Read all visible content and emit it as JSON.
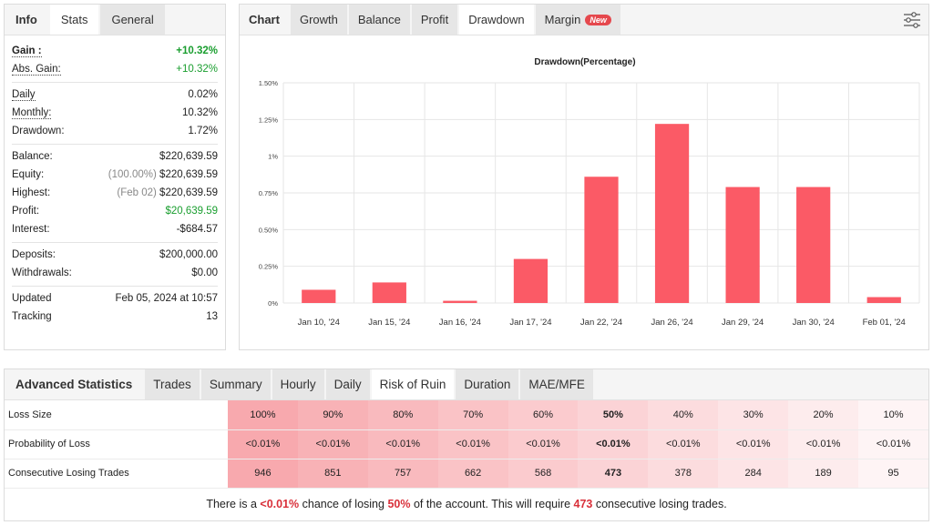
{
  "stats_panel": {
    "tabs": [
      {
        "label": "Info",
        "style": "plain"
      },
      {
        "label": "Stats",
        "style": "active"
      },
      {
        "label": "General",
        "style": "normal"
      }
    ],
    "groups": [
      [
        {
          "label": "Gain :",
          "value": "+10.32%",
          "label_style": "ul bold",
          "value_style": "green"
        },
        {
          "label": "Abs. Gain:",
          "value": "+10.32%",
          "label_style": "ul",
          "value_style": "greenplain"
        }
      ],
      [
        {
          "label": "Daily",
          "value": "0.02%",
          "label_style": "ul"
        },
        {
          "label": "Monthly:",
          "value": "10.32%",
          "label_style": "ul"
        },
        {
          "label": "Drawdown:",
          "value": "1.72%"
        }
      ],
      [
        {
          "label": "Balance:",
          "value": "$220,639.59"
        },
        {
          "label": "Equity:",
          "note": "(100.00%)",
          "value": "$220,639.59"
        },
        {
          "label": "Highest:",
          "note": "(Feb 02)",
          "value": "$220,639.59"
        },
        {
          "label": "Profit:",
          "value": "$20,639.59",
          "value_style": "greenplain"
        },
        {
          "label": "Interest:",
          "value": "-$684.57"
        }
      ],
      [
        {
          "label": "Deposits:",
          "value": "$200,000.00"
        },
        {
          "label": "Withdrawals:",
          "value": "$0.00"
        }
      ],
      [
        {
          "label": "Updated",
          "value": "Feb 05, 2024 at 10:57"
        },
        {
          "label": "Tracking",
          "value": "13"
        }
      ]
    ]
  },
  "chart_panel": {
    "tabs": [
      {
        "label": "Chart",
        "style": "plain"
      },
      {
        "label": "Growth",
        "style": "normal"
      },
      {
        "label": "Balance",
        "style": "normal"
      },
      {
        "label": "Profit",
        "style": "normal"
      },
      {
        "label": "Drawdown",
        "style": "active"
      },
      {
        "label": "Margin",
        "style": "normal",
        "badge": "New"
      }
    ],
    "settings_icon": "sliders-icon"
  },
  "chart_data": {
    "type": "bar",
    "title": "Drawdown(Percentage)",
    "categories": [
      "Jan 10, '24",
      "Jan 15, '24",
      "Jan 16, '24",
      "Jan 17, '24",
      "Jan 22, '24",
      "Jan 26, '24",
      "Jan 29, '24",
      "Jan 30, '24",
      "Feb 01, '24"
    ],
    "values": [
      0.09,
      0.14,
      0.015,
      0.3,
      0.86,
      1.22,
      0.79,
      0.79,
      0.04
    ],
    "ylim": [
      0,
      1.5
    ],
    "yticks": [
      {
        "value": 0,
        "label": "0%"
      },
      {
        "value": 0.25,
        "label": "0.25%"
      },
      {
        "value": 0.5,
        "label": "0.50%"
      },
      {
        "value": 0.75,
        "label": "0.75%"
      },
      {
        "value": 1,
        "label": "1%"
      },
      {
        "value": 1.25,
        "label": "1.25%"
      },
      {
        "value": 1.5,
        "label": "1.50%"
      }
    ],
    "bar_color": "#fb5a66",
    "grid": true
  },
  "advanced": {
    "tabs": [
      {
        "label": "Advanced Statistics",
        "style": "plain"
      },
      {
        "label": "Trades",
        "style": "normal"
      },
      {
        "label": "Summary",
        "style": "normal"
      },
      {
        "label": "Hourly",
        "style": "normal"
      },
      {
        "label": "Daily",
        "style": "normal"
      },
      {
        "label": "Risk of Ruin",
        "style": "active"
      },
      {
        "label": "Duration",
        "style": "normal"
      },
      {
        "label": "MAE/MFE",
        "style": "normal"
      }
    ],
    "highlight_col": 5,
    "rows": [
      {
        "label": "Loss Size",
        "cells": [
          "100%",
          "90%",
          "80%",
          "70%",
          "60%",
          "50%",
          "40%",
          "30%",
          "20%",
          "10%"
        ]
      },
      {
        "label": "Probability of Loss",
        "cells": [
          "<0.01%",
          "<0.01%",
          "<0.01%",
          "<0.01%",
          "<0.01%",
          "<0.01%",
          "<0.01%",
          "<0.01%",
          "<0.01%",
          "<0.01%"
        ]
      },
      {
        "label": "Consecutive Losing Trades",
        "cells": [
          "946",
          "851",
          "757",
          "662",
          "568",
          "473",
          "378",
          "284",
          "189",
          "95"
        ]
      }
    ],
    "col_colors": [
      "#f8a9ae",
      "#f8b2b6",
      "#f9babe",
      "#fac3c6",
      "#fbcbce",
      "#fbd3d6",
      "#fcdcde",
      "#fde4e6",
      "#fdeced",
      "#fef4f5"
    ],
    "footer": {
      "p1": "There is a ",
      "prob": "<0.01%",
      "p2": " chance of losing ",
      "loss": "50%",
      "p3": " of the account. This will require ",
      "trades": "473",
      "p4": " consecutive losing trades."
    }
  }
}
